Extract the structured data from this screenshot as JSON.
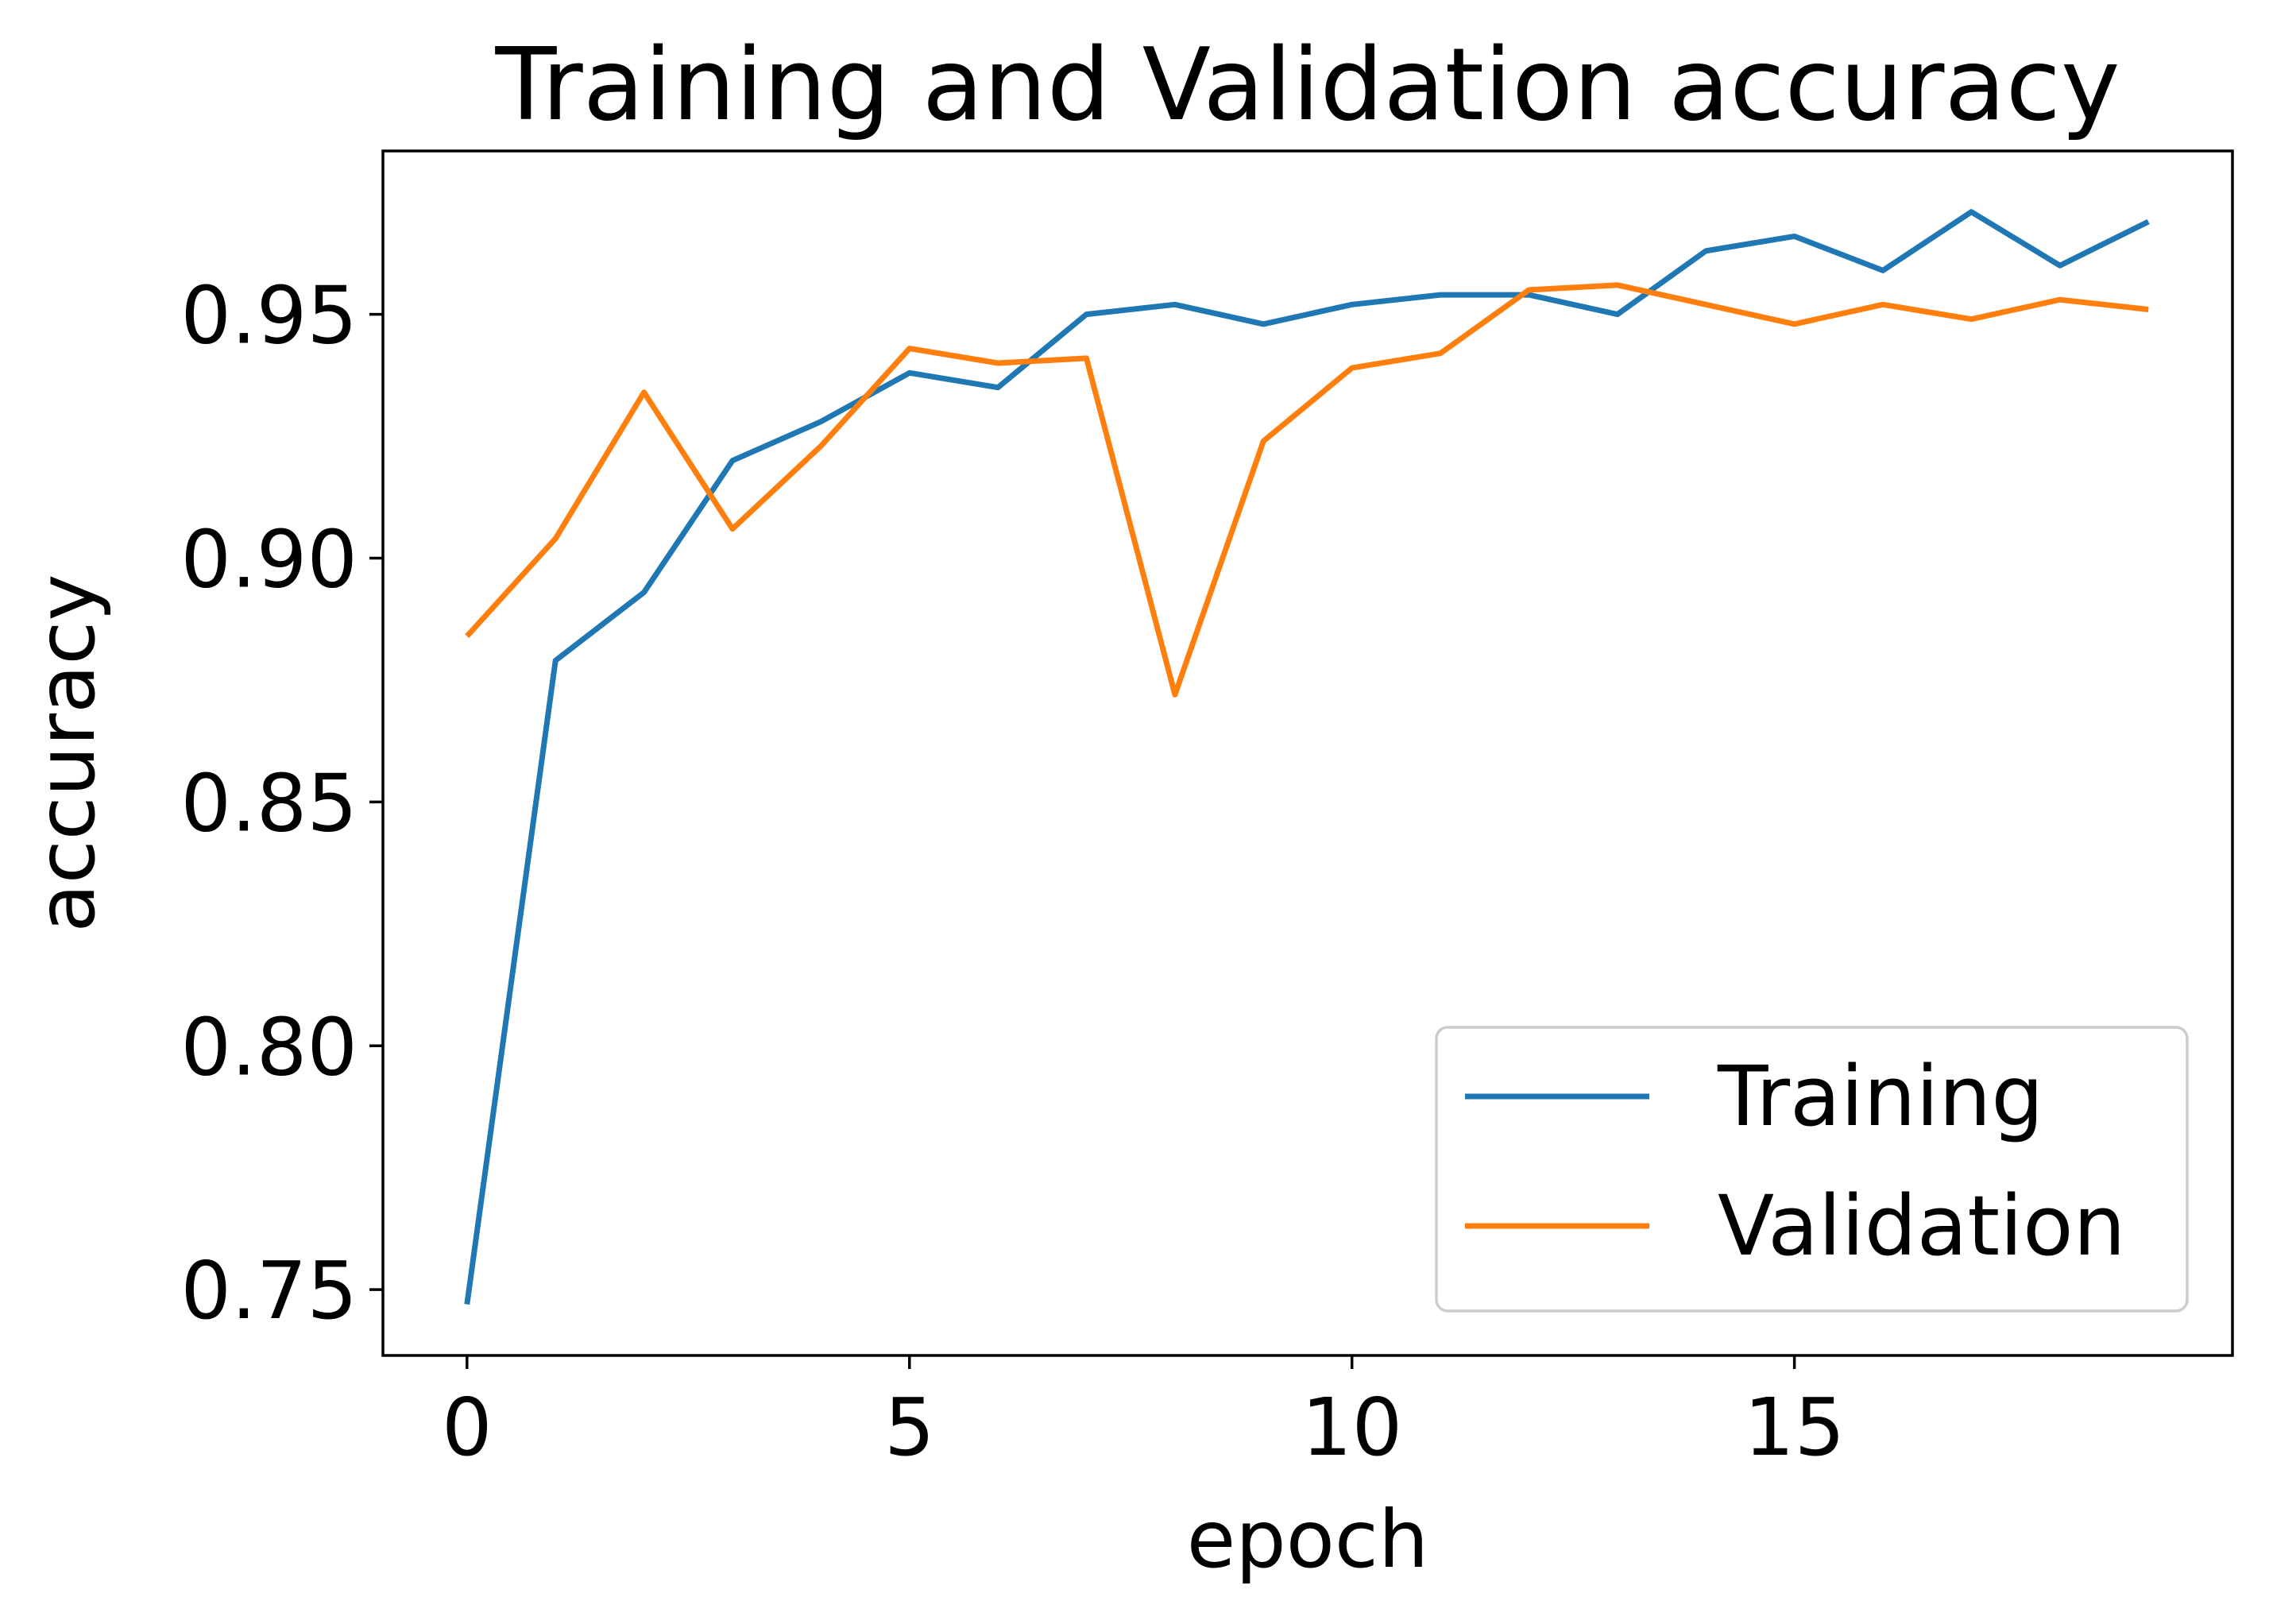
{
  "chart_data": {
    "type": "line",
    "title": "Training and Validation accuracy",
    "xlabel": "epoch",
    "ylabel": "accuracy",
    "xlim": [
      -0.95,
      19.95
    ],
    "ylim": [
      0.7365,
      0.9835
    ],
    "xticks": [
      0,
      5,
      10,
      15
    ],
    "xtick_labels": [
      "0",
      "5",
      "10",
      "15"
    ],
    "yticks": [
      0.75,
      0.8,
      0.85,
      0.9,
      0.95
    ],
    "ytick_labels": [
      "0.75",
      "0.80",
      "0.85",
      "0.90",
      "0.95"
    ],
    "grid": false,
    "legend": "lower-right",
    "x": [
      0,
      1,
      2,
      3,
      4,
      5,
      6,
      7,
      8,
      9,
      10,
      11,
      12,
      13,
      14,
      15,
      16,
      17,
      18,
      19
    ],
    "series": [
      {
        "name": "Training",
        "color": "#1f77b4",
        "values": [
          0.747,
          0.879,
          0.893,
          0.92,
          0.928,
          0.938,
          0.935,
          0.95,
          0.952,
          0.948,
          0.952,
          0.954,
          0.954,
          0.95,
          0.963,
          0.966,
          0.959,
          0.971,
          0.96,
          0.969
        ]
      },
      {
        "name": "Validation",
        "color": "#ff7f0e",
        "values": [
          0.884,
          0.904,
          0.934,
          0.906,
          0.923,
          0.943,
          0.94,
          0.941,
          0.872,
          0.924,
          0.939,
          0.942,
          0.955,
          0.956,
          0.952,
          0.948,
          0.952,
          0.949,
          0.953,
          0.951
        ]
      }
    ]
  }
}
